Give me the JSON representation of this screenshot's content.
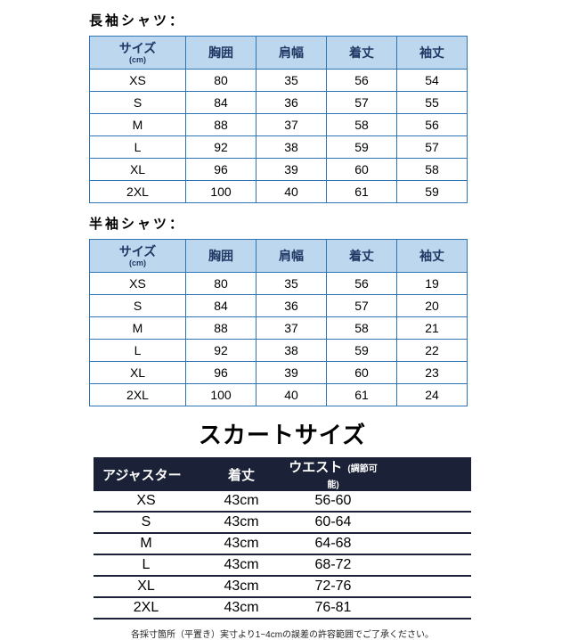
{
  "long_sleeve": {
    "title": "長袖シャツ：",
    "header": {
      "size_label": "サイズ",
      "size_unit": "(cm)",
      "columns": [
        "胸囲",
        "肩幅",
        "着丈",
        "袖丈"
      ]
    },
    "rows": [
      [
        "XS",
        "80",
        "35",
        "56",
        "54"
      ],
      [
        "S",
        "84",
        "36",
        "57",
        "55"
      ],
      [
        "M",
        "88",
        "37",
        "58",
        "56"
      ],
      [
        "L",
        "92",
        "38",
        "59",
        "57"
      ],
      [
        "XL",
        "96",
        "39",
        "60",
        "58"
      ],
      [
        "2XL",
        "100",
        "40",
        "61",
        "59"
      ]
    ]
  },
  "short_sleeve": {
    "title": "半袖シャツ：",
    "header": {
      "size_label": "サイズ",
      "size_unit": "(cm)",
      "columns": [
        "胸囲",
        "肩幅",
        "着丈",
        "袖丈"
      ]
    },
    "rows": [
      [
        "XS",
        "80",
        "35",
        "56",
        "19"
      ],
      [
        "S",
        "84",
        "36",
        "57",
        "20"
      ],
      [
        "M",
        "88",
        "37",
        "58",
        "21"
      ],
      [
        "L",
        "92",
        "38",
        "59",
        "22"
      ],
      [
        "XL",
        "96",
        "39",
        "60",
        "23"
      ],
      [
        "2XL",
        "100",
        "40",
        "61",
        "24"
      ]
    ]
  },
  "skirt": {
    "title": "スカートサイズ",
    "header": {
      "adjuster": "アジャスター",
      "length": "着丈",
      "waist": "ウエスト",
      "waist_note": "(調節可能)"
    },
    "rows": [
      [
        "XS",
        "43cm",
        "56-60"
      ],
      [
        "S",
        "43cm",
        "60-64"
      ],
      [
        "M",
        "43cm",
        "64-68"
      ],
      [
        "L",
        "43cm",
        "68-72"
      ],
      [
        "XL",
        "43cm",
        "72-76"
      ],
      [
        "2XL",
        "43cm",
        "76-81"
      ]
    ]
  },
  "footnote": "各採寸箇所（平置き）実寸より1~4cmの誤差の許容範囲でご了承ください。",
  "colors": {
    "table_border": "#2e75b6",
    "header_bg": "#bdd7ee",
    "header_text": "#1f3864",
    "skirt_header_bg": "#1b2136",
    "skirt_header_text": "#ffffff"
  }
}
